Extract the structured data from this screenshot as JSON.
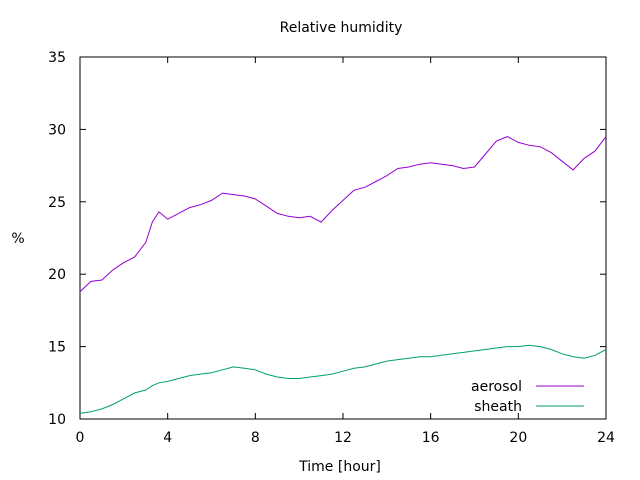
{
  "chart_data": {
    "type": "line",
    "title": "Relative humidity",
    "xlabel": "Time [hour]",
    "ylabel": "%",
    "xlim": [
      0,
      24
    ],
    "ylim": [
      10,
      35
    ],
    "xticks": [
      0,
      4,
      8,
      12,
      16,
      20,
      24
    ],
    "yticks": [
      10,
      15,
      20,
      25,
      30,
      35
    ],
    "grid": false,
    "legend_position": "bottom-right",
    "x": [
      0,
      0.5,
      1,
      1.5,
      2,
      2.5,
      3,
      3.3,
      3.6,
      4,
      4.5,
      5,
      5.5,
      6,
      6.5,
      7,
      7.5,
      8,
      8.5,
      9,
      9.5,
      10,
      10.5,
      11,
      11.5,
      12,
      12.5,
      13,
      13.5,
      14,
      14.5,
      15,
      15.5,
      16,
      16.5,
      17,
      17.5,
      18,
      18.5,
      19,
      19.5,
      20,
      20.5,
      21,
      21.5,
      22,
      22.5,
      23,
      23.5,
      24
    ],
    "series": [
      {
        "name": "aerosol",
        "color": "#9400d3",
        "values": [
          18.8,
          19.5,
          19.6,
          20.3,
          20.8,
          21.2,
          22.2,
          23.6,
          24.3,
          23.8,
          24.2,
          24.6,
          24.8,
          25.1,
          25.6,
          25.5,
          25.4,
          25.2,
          24.7,
          24.2,
          24.0,
          23.9,
          24.0,
          23.6,
          24.4,
          25.1,
          25.8,
          26.0,
          26.4,
          26.8,
          27.3,
          27.4,
          27.6,
          27.7,
          27.6,
          27.5,
          27.3,
          27.4,
          28.3,
          29.2,
          29.5,
          29.1,
          28.9,
          28.8,
          28.4,
          27.8,
          27.2,
          28.0,
          28.5,
          29.5
        ]
      },
      {
        "name": "sheath",
        "color": "#009e73",
        "values": [
          10.4,
          10.5,
          10.7,
          11.0,
          11.4,
          11.8,
          12.0,
          12.3,
          12.5,
          12.6,
          12.8,
          13.0,
          13.1,
          13.2,
          13.4,
          13.6,
          13.5,
          13.4,
          13.1,
          12.9,
          12.8,
          12.8,
          12.9,
          13.0,
          13.1,
          13.3,
          13.5,
          13.6,
          13.8,
          14.0,
          14.1,
          14.2,
          14.3,
          14.3,
          14.4,
          14.5,
          14.6,
          14.7,
          14.8,
          14.9,
          15.0,
          15.0,
          15.1,
          15.0,
          14.8,
          14.5,
          14.3,
          14.2,
          14.4,
          14.8
        ]
      }
    ]
  }
}
